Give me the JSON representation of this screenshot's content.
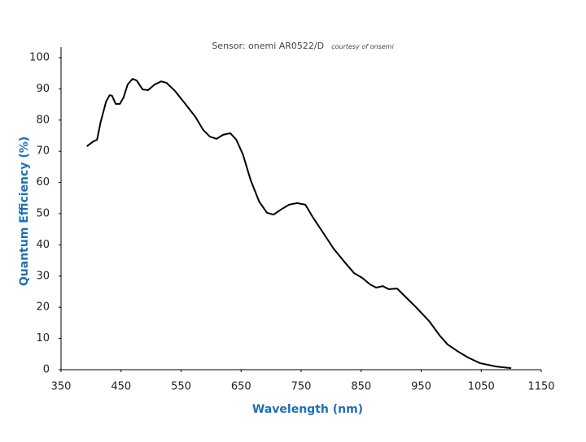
{
  "chart_data": {
    "type": "line",
    "title": "Sensor: onemi AR0522/D",
    "subtitle": "courtesy of onsemi",
    "x_label": "Wavelength (nm)",
    "y_label": "Quantum Efficiency (%)",
    "color": "#000000",
    "x": [
      393,
      404,
      410,
      416,
      425,
      431,
      435,
      441,
      448,
      454,
      461,
      469,
      476,
      486,
      495,
      506,
      517,
      526,
      540,
      557,
      574,
      587,
      598,
      609,
      620,
      632,
      642,
      653,
      666,
      680,
      693,
      704,
      716,
      730,
      743,
      757,
      770,
      788,
      804,
      825,
      838,
      852,
      865,
      875,
      886,
      896,
      910,
      922,
      940,
      964,
      981,
      994,
      1010,
      1028,
      1048,
      1075,
      1100
    ],
    "values": [
      71.6,
      73.2,
      73.7,
      79.4,
      85.9,
      88.0,
      87.8,
      85.2,
      85.2,
      87.2,
      91.4,
      93.2,
      92.7,
      89.8,
      89.6,
      91.4,
      92.4,
      91.9,
      89.3,
      85.2,
      81.0,
      76.8,
      74.7,
      74.0,
      75.3,
      75.8,
      73.7,
      69.0,
      60.7,
      53.9,
      50.3,
      49.7,
      51.3,
      52.9,
      53.4,
      52.9,
      48.7,
      43.5,
      38.8,
      33.9,
      31.0,
      29.4,
      27.3,
      26.3,
      26.8,
      25.8,
      26.0,
      23.7,
      20.3,
      15.4,
      10.9,
      8.1,
      6.0,
      3.9,
      2.1,
      1.0,
      0.5
    ],
    "xlim": [
      350,
      1150
    ],
    "xticks": [
      350,
      450,
      550,
      650,
      750,
      850,
      950,
      1050,
      1150
    ],
    "ylim": [
      0,
      100
    ],
    "yticks": [
      0,
      10,
      20,
      30,
      40,
      50,
      60,
      70,
      80,
      90,
      100
    ]
  }
}
